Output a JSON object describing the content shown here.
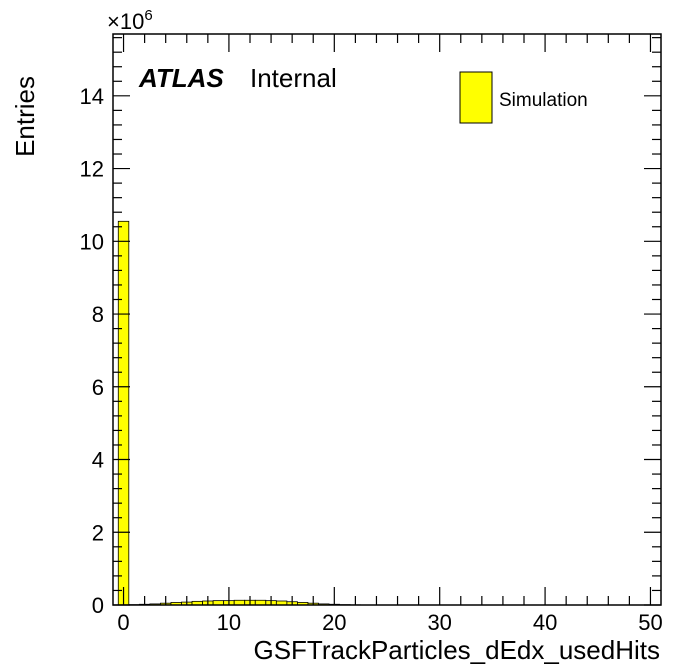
{
  "chart_data": {
    "type": "bar",
    "title": "",
    "xlabel": "GSFTrackParticles_dEdx_usedHits",
    "ylabel": "Entries",
    "y_multiplier_label": "×10",
    "y_multiplier_exp": "6",
    "xlim": [
      -1,
      51
    ],
    "ylim": [
      0,
      15.7
    ],
    "y_unit_scale": 1000000,
    "bin_width": 1,
    "bin_centers": [
      0,
      1,
      2,
      3,
      4,
      5,
      6,
      7,
      8,
      9,
      10,
      11,
      12,
      13,
      14,
      15,
      16,
      17,
      18,
      19,
      20,
      21,
      22,
      23,
      24,
      25,
      26,
      27,
      28,
      29,
      30,
      31,
      32,
      33,
      34,
      35,
      36,
      37,
      38,
      39,
      40,
      41,
      42,
      43,
      44,
      45,
      46,
      47,
      48,
      49,
      50
    ],
    "values": [
      10.55,
      0.01,
      0.02,
      0.03,
      0.05,
      0.07,
      0.08,
      0.1,
      0.11,
      0.12,
      0.12,
      0.13,
      0.13,
      0.13,
      0.12,
      0.11,
      0.09,
      0.07,
      0.05,
      0.03,
      0.02,
      0.01,
      0.005,
      0,
      0,
      0,
      0,
      0,
      0,
      0,
      0,
      0,
      0,
      0,
      0,
      0,
      0,
      0,
      0,
      0,
      0,
      0,
      0,
      0,
      0,
      0,
      0,
      0,
      0,
      0,
      0
    ],
    "x_ticks": [
      "0",
      "10",
      "20",
      "30",
      "40",
      "50"
    ],
    "y_ticks": [
      "0",
      "2",
      "4",
      "6",
      "8",
      "10",
      "12",
      "14"
    ],
    "series": [
      {
        "name": "Simulation",
        "color": "#ffff00"
      }
    ],
    "legend_position": "top-right",
    "grid": false
  },
  "labels": {
    "experiment": "ATLAS",
    "status": "Internal"
  },
  "colors": {
    "fill": "#ffff00",
    "line": "#000000"
  }
}
